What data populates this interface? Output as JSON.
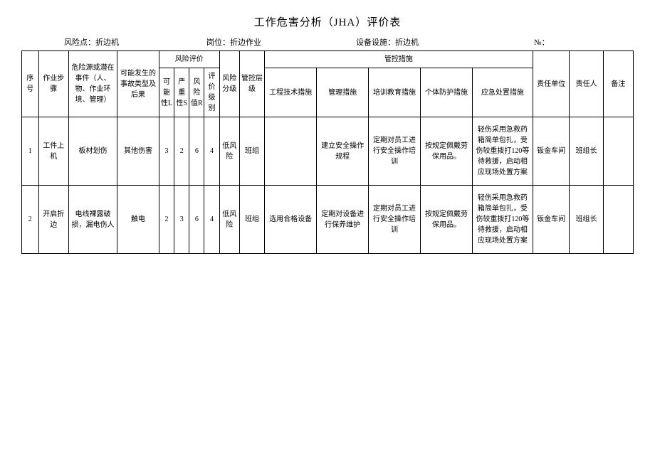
{
  "title": "工作危害分析（JHA）评价表",
  "header": {
    "risk_point_label": "风险点：",
    "risk_point_value": "折边机",
    "position_label": "岗位：",
    "position_value": "折边作业",
    "equipment_label": "设备设施：",
    "equipment_value": "折边机",
    "number_label": "№："
  },
  "columns": {
    "seq": "序号",
    "step": "作业步骤",
    "hazard": "危险源或潜在事件（人、物、作业环境、管理）",
    "accident": "可能发生的事故类型及后果",
    "risk_eval": "风险评价",
    "L": "可能性L",
    "S": "严重性S",
    "R": "风险值R",
    "level": "评价级别",
    "risk_class": "风险分级",
    "ctrl_level": "管控层级",
    "ctrl_measures": "管控措施",
    "eng": "工程技术措施",
    "mgmt": "管理措施",
    "training": "培训教育措施",
    "ppe": "个体防护措施",
    "emergency": "应急处置措施",
    "unit": "责任单位",
    "person": "责任人",
    "note": "备注"
  },
  "rows": [
    {
      "seq": "1",
      "step": "工件上机",
      "hazard": "板材划伤",
      "accident": "其他伤害",
      "L": "3",
      "S": "2",
      "R": "6",
      "level": "4",
      "risk_class": "低风险",
      "ctrl_level": "班组",
      "eng": "",
      "mgmt": "建立安全操作规程",
      "training": "定期对员工进行安全操作培训",
      "ppe": "按规定佩戴劳保用品。",
      "emergency": "轻伤采用急救药箱简单包扎，受伤较重拨打120等待救援，启动相应现场处置方案",
      "unit": "钣金车间",
      "person": "班组长",
      "note": ""
    },
    {
      "seq": "2",
      "step": "开启折边",
      "hazard": "电线裸露破损，漏电伤人",
      "accident": "触电",
      "L": "2",
      "S": "3",
      "R": "6",
      "level": "4",
      "risk_class": "低风险",
      "ctrl_level": "班组",
      "eng": "选用合格设备",
      "mgmt": "定期对设备进行保养维护",
      "training": "定期对员工进行安全操作培训",
      "ppe": "按规定佩戴劳保用品。",
      "emergency": "轻伤采用急救药箱简单包扎，受伤较重拨打120等待救援，启动相应现场处置方案",
      "unit": "钣金车间",
      "person": "班组长",
      "note": ""
    }
  ]
}
